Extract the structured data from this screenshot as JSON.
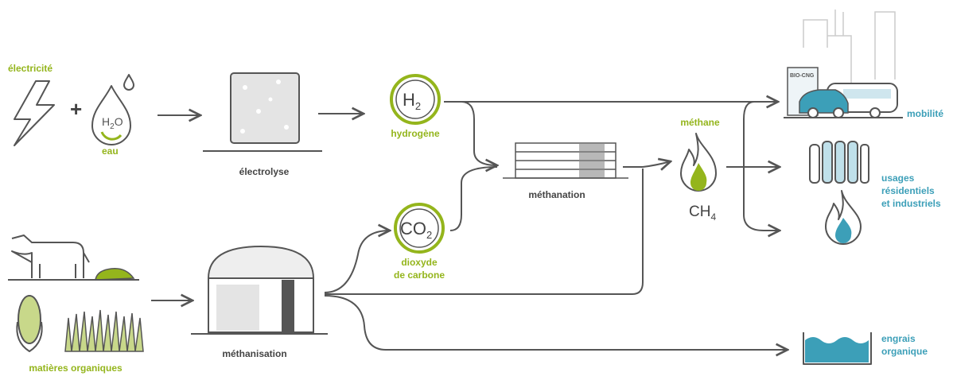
{
  "inputs": {
    "electricity": "électricité",
    "plus": "+",
    "water": "eau",
    "water_formula": [
      "H",
      "2",
      "O"
    ],
    "organic_matter": "matières organiques"
  },
  "processes": {
    "electrolysis": "électrolyse",
    "methanation": "méthanation",
    "methanisation": "méthanisation"
  },
  "intermediates": {
    "hydrogen": {
      "formula": [
        "H",
        "2"
      ],
      "label": "hydrogène"
    },
    "carbon_dioxide": {
      "formula": [
        "CO",
        "2"
      ],
      "label": [
        "dioxyde",
        "de carbone"
      ]
    },
    "methane": {
      "label": "méthane",
      "formula": [
        "CH",
        "4"
      ]
    }
  },
  "outputs": {
    "mobility": {
      "label": "mobilité",
      "station_sign": "BIO-CNG"
    },
    "residential_industrial": [
      "usages",
      "résidentiels",
      "et industriels"
    ],
    "fertilizer": [
      "engrais",
      "organique"
    ]
  }
}
